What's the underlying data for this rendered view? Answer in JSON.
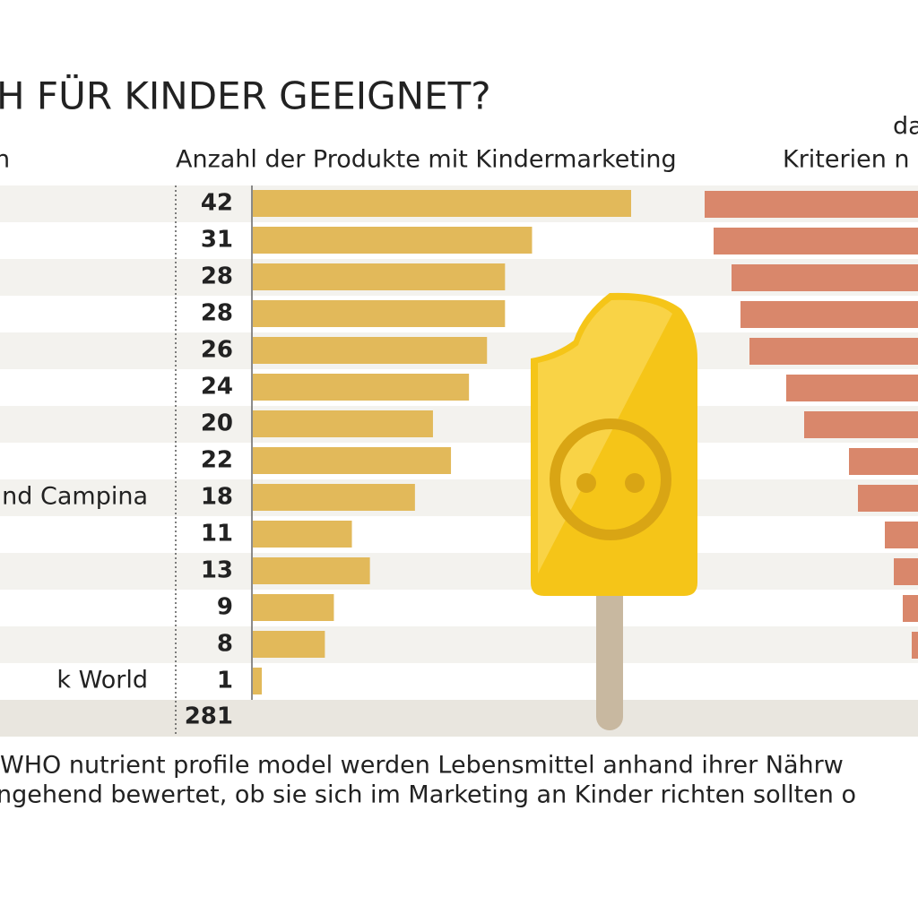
{
  "chart_data": {
    "type": "bar",
    "title": "H FÜR KINDER GEEIGNET?",
    "column_header": "Anzahl der Produkte mit Kindermarketing",
    "left_header": "n",
    "right_header_top": "da",
    "right_header": "Kriterien n",
    "categories": [
      null,
      null,
      null,
      null,
      null,
      null,
      null,
      null,
      "nd Campina",
      null,
      null,
      null,
      null,
      "k World"
    ],
    "values": [
      42,
      31,
      28,
      28,
      26,
      24,
      20,
      22,
      18,
      11,
      13,
      9,
      8,
      1
    ],
    "color": "#e2b95a",
    "total": 281,
    "footnote": [
      "WHO nutrient profile model werden Lebensmittel anhand ihrer Nährw",
      "ngehend bewertet, ob sie sich im Marketing an Kinder richten sollten o"
    ]
  }
}
